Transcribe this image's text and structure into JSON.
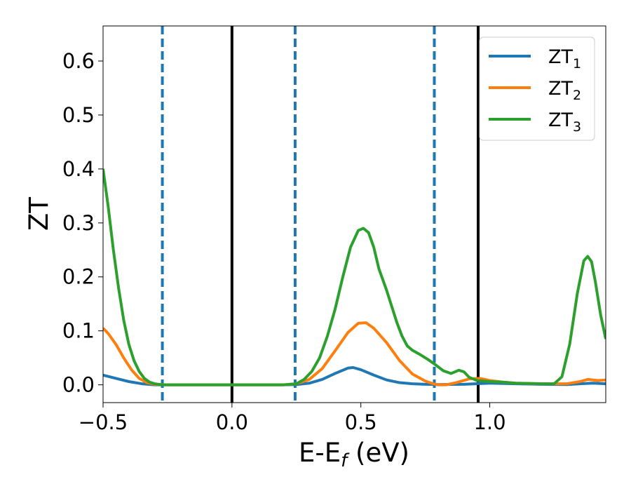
{
  "chart_data": {
    "type": "line",
    "title": "",
    "xlabel": "E-E",
    "xlabel_sub": "f",
    "xlabel_unit": " (eV)",
    "ylabel": "ZT",
    "xlim": [
      -0.5,
      1.45
    ],
    "ylim": [
      -0.033,
      0.665
    ],
    "x_ticks": [
      -0.5,
      0.0,
      0.5,
      1.0
    ],
    "x_tick_labels": [
      "−0.5",
      "0.0",
      "0.5",
      "1.0"
    ],
    "y_ticks": [
      0.0,
      0.1,
      0.2,
      0.3,
      0.4,
      0.5,
      0.6
    ],
    "y_tick_labels": [
      "0.0",
      "0.1",
      "0.2",
      "0.3",
      "0.4",
      "0.5",
      "0.6"
    ],
    "grid": false,
    "legend_position": "top-right",
    "vlines": [
      {
        "x": -0.27,
        "style": "dashed",
        "color": "#1f77b4"
      },
      {
        "x": 0.0,
        "style": "solid",
        "color": "#000000"
      },
      {
        "x": 0.245,
        "style": "dashed",
        "color": "#1f77b4"
      },
      {
        "x": 0.785,
        "style": "dashed",
        "color": "#1f77b4"
      },
      {
        "x": 0.955,
        "style": "solid",
        "color": "#000000"
      }
    ],
    "series": [
      {
        "name": "ZT",
        "name_sub": "1",
        "color": "#1f77b4",
        "points": [
          [
            -0.5,
            0.018
          ],
          [
            -0.45,
            0.012
          ],
          [
            -0.4,
            0.006
          ],
          [
            -0.35,
            0.002
          ],
          [
            -0.3,
            0.0
          ],
          [
            -0.2,
            0.0
          ],
          [
            0.0,
            0.0
          ],
          [
            0.2,
            0.0
          ],
          [
            0.25,
            0.0005
          ],
          [
            0.3,
            0.003
          ],
          [
            0.35,
            0.01
          ],
          [
            0.4,
            0.021
          ],
          [
            0.45,
            0.031
          ],
          [
            0.47,
            0.032
          ],
          [
            0.5,
            0.028
          ],
          [
            0.55,
            0.018
          ],
          [
            0.6,
            0.009
          ],
          [
            0.65,
            0.004
          ],
          [
            0.7,
            0.002
          ],
          [
            0.75,
            0.001
          ],
          [
            0.8,
            0.0005
          ],
          [
            0.9,
            0.001
          ],
          [
            1.0,
            0.003
          ],
          [
            1.1,
            0.002
          ],
          [
            1.2,
            0.001
          ],
          [
            1.3,
            0.0005
          ],
          [
            1.35,
            0.002
          ],
          [
            1.4,
            0.003
          ],
          [
            1.45,
            0.002
          ]
        ]
      },
      {
        "name": "ZT",
        "name_sub": "2",
        "color": "#ff7f0e",
        "points": [
          [
            -0.5,
            0.105
          ],
          [
            -0.48,
            0.095
          ],
          [
            -0.45,
            0.075
          ],
          [
            -0.42,
            0.05
          ],
          [
            -0.39,
            0.028
          ],
          [
            -0.36,
            0.012
          ],
          [
            -0.33,
            0.004
          ],
          [
            -0.3,
            0.001
          ],
          [
            -0.25,
            0.0
          ],
          [
            0.0,
            0.0
          ],
          [
            0.2,
            0.0
          ],
          [
            0.25,
            0.002
          ],
          [
            0.3,
            0.01
          ],
          [
            0.35,
            0.03
          ],
          [
            0.4,
            0.063
          ],
          [
            0.45,
            0.097
          ],
          [
            0.49,
            0.114
          ],
          [
            0.52,
            0.115
          ],
          [
            0.55,
            0.105
          ],
          [
            0.6,
            0.078
          ],
          [
            0.65,
            0.045
          ],
          [
            0.7,
            0.02
          ],
          [
            0.75,
            0.007
          ],
          [
            0.78,
            0.002
          ],
          [
            0.8,
            0.0
          ],
          [
            0.83,
            0.0
          ],
          [
            0.87,
            0.004
          ],
          [
            0.92,
            0.011
          ],
          [
            0.96,
            0.012
          ],
          [
            1.0,
            0.008
          ],
          [
            1.05,
            0.005
          ],
          [
            1.1,
            0.003
          ],
          [
            1.2,
            0.002
          ],
          [
            1.3,
            0.002
          ],
          [
            1.35,
            0.006
          ],
          [
            1.38,
            0.01
          ],
          [
            1.42,
            0.008
          ],
          [
            1.45,
            0.009
          ]
        ]
      },
      {
        "name": "ZT",
        "name_sub": "3",
        "color": "#2ca02c",
        "points": [
          [
            -0.5,
            0.4
          ],
          [
            -0.48,
            0.33
          ],
          [
            -0.46,
            0.25
          ],
          [
            -0.44,
            0.18
          ],
          [
            -0.42,
            0.12
          ],
          [
            -0.4,
            0.075
          ],
          [
            -0.38,
            0.045
          ],
          [
            -0.36,
            0.025
          ],
          [
            -0.34,
            0.012
          ],
          [
            -0.32,
            0.005
          ],
          [
            -0.3,
            0.002
          ],
          [
            -0.27,
            0.0
          ],
          [
            0.0,
            0.0
          ],
          [
            0.2,
            0.0
          ],
          [
            0.25,
            0.002
          ],
          [
            0.28,
            0.01
          ],
          [
            0.31,
            0.025
          ],
          [
            0.34,
            0.05
          ],
          [
            0.37,
            0.09
          ],
          [
            0.4,
            0.14
          ],
          [
            0.43,
            0.2
          ],
          [
            0.46,
            0.255
          ],
          [
            0.49,
            0.286
          ],
          [
            0.51,
            0.29
          ],
          [
            0.53,
            0.282
          ],
          [
            0.55,
            0.255
          ],
          [
            0.57,
            0.215
          ],
          [
            0.6,
            0.175
          ],
          [
            0.62,
            0.145
          ],
          [
            0.64,
            0.115
          ],
          [
            0.66,
            0.09
          ],
          [
            0.68,
            0.072
          ],
          [
            0.7,
            0.064
          ],
          [
            0.73,
            0.056
          ],
          [
            0.76,
            0.047
          ],
          [
            0.79,
            0.037
          ],
          [
            0.82,
            0.026
          ],
          [
            0.85,
            0.021
          ],
          [
            0.88,
            0.027
          ],
          [
            0.9,
            0.024
          ],
          [
            0.92,
            0.014
          ],
          [
            0.95,
            0.008
          ],
          [
            1.0,
            0.006
          ],
          [
            1.05,
            0.005
          ],
          [
            1.1,
            0.003
          ],
          [
            1.2,
            0.002
          ],
          [
            1.25,
            0.002
          ],
          [
            1.28,
            0.015
          ],
          [
            1.31,
            0.075
          ],
          [
            1.34,
            0.17
          ],
          [
            1.365,
            0.23
          ],
          [
            1.38,
            0.238
          ],
          [
            1.395,
            0.228
          ],
          [
            1.41,
            0.19
          ],
          [
            1.43,
            0.13
          ],
          [
            1.45,
            0.085
          ]
        ]
      }
    ]
  }
}
